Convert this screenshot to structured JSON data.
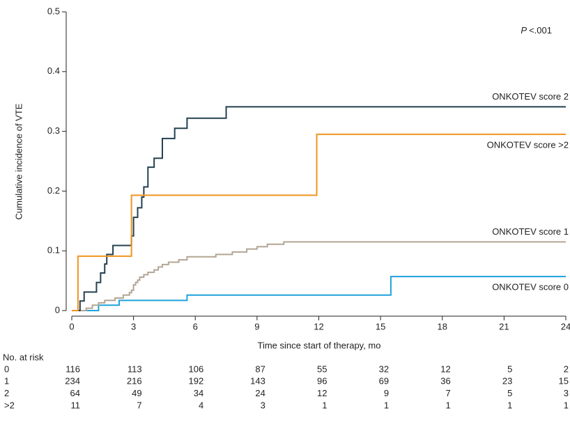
{
  "chart_data": {
    "type": "step",
    "xlabel": "Time since start of therapy, mo",
    "ylabel": "Cumulative incidence of VTE",
    "p_value": {
      "symbol": "P",
      "text": "<.001"
    },
    "xlim": [
      0,
      24
    ],
    "xticks": [
      0,
      3,
      6,
      9,
      12,
      15,
      18,
      21,
      24
    ],
    "ylim": [
      0,
      0.5
    ],
    "yticks": [
      0,
      0.1,
      0.2,
      0.3,
      0.4,
      0.5
    ],
    "grid": false,
    "series": [
      {
        "name": "ONKOTEV score 0",
        "color": "#1ea2dc",
        "x": [
          0,
          1.3,
          2.3,
          5.6,
          15.5,
          24
        ],
        "values": [
          0,
          0.009,
          0.017,
          0.026,
          0.057,
          0.057
        ]
      },
      {
        "name": "ONKOTEV score 1",
        "color": "#b3a595",
        "x": [
          0,
          0.7,
          1.0,
          1.3,
          1.6,
          2.1,
          2.5,
          2.8,
          2.9,
          3.0,
          3.1,
          3.2,
          3.3,
          3.5,
          3.7,
          4.0,
          4.2,
          4.4,
          4.7,
          5.2,
          5.6,
          7.0,
          7.8,
          8.5,
          9.0,
          9.5,
          10.3,
          24
        ],
        "values": [
          0,
          0.004,
          0.009,
          0.013,
          0.017,
          0.021,
          0.026,
          0.03,
          0.034,
          0.043,
          0.047,
          0.051,
          0.056,
          0.06,
          0.064,
          0.068,
          0.073,
          0.077,
          0.081,
          0.085,
          0.09,
          0.094,
          0.098,
          0.103,
          0.107,
          0.111,
          0.115,
          0.115
        ]
      },
      {
        "name": "ONKOTEV score 2",
        "color": "#24404f",
        "x": [
          0,
          0.4,
          0.6,
          1.2,
          1.4,
          1.6,
          1.7,
          2.0,
          2.9,
          3.0,
          3.2,
          3.4,
          3.5,
          3.7,
          4.0,
          4.4,
          5.0,
          5.6,
          7.5,
          24
        ],
        "values": [
          0,
          0.016,
          0.031,
          0.047,
          0.063,
          0.078,
          0.094,
          0.109,
          0.125,
          0.156,
          0.172,
          0.19,
          0.207,
          0.24,
          0.255,
          0.288,
          0.305,
          0.322,
          0.341,
          0.341
        ]
      },
      {
        "name": "ONKOTEV score >2",
        "color": "#f0941f",
        "x": [
          0,
          0.3,
          2.9,
          11.9,
          24
        ],
        "values": [
          0,
          0.091,
          0.193,
          0.295,
          0.295
        ]
      }
    ],
    "risk_table": {
      "title": "No. at risk",
      "rows": [
        {
          "label": "0",
          "values": [
            116,
            113,
            106,
            87,
            55,
            32,
            12,
            5,
            2
          ]
        },
        {
          "label": "1",
          "values": [
            234,
            216,
            192,
            143,
            96,
            69,
            36,
            23,
            15
          ]
        },
        {
          "label": "2",
          "values": [
            64,
            49,
            34,
            24,
            12,
            9,
            7,
            5,
            3
          ]
        },
        {
          "label": ">2",
          "values": [
            11,
            7,
            4,
            3,
            1,
            1,
            1,
            1,
            1
          ]
        }
      ]
    }
  }
}
